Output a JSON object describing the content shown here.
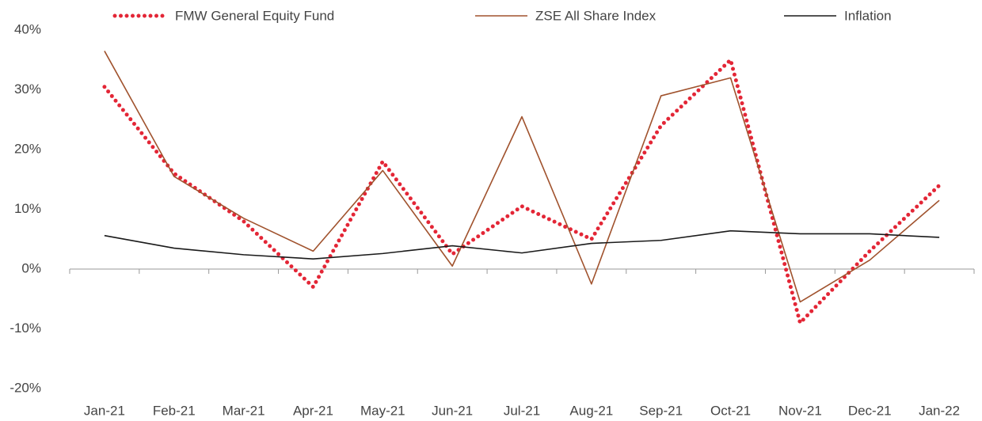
{
  "chart_data": {
    "type": "line",
    "categories": [
      "Jan-21",
      "Feb-21",
      "Mar-21",
      "Apr-21",
      "May-21",
      "Jun-21",
      "Jul-21",
      "Aug-21",
      "Sep-21",
      "Oct-21",
      "Nov-21",
      "Dec-21",
      "Jan-22"
    ],
    "series": [
      {
        "name": "FMW General Equity Fund",
        "color": "#e32636",
        "style": "dotted",
        "values": [
          30.5,
          16,
          8,
          -3,
          18,
          2.5,
          10.5,
          5,
          24,
          35,
          -9,
          3,
          14
        ]
      },
      {
        "name": "ZSE All Share Index",
        "color": "#a0522d",
        "style": "solid",
        "values": [
          36.5,
          15.5,
          8.5,
          3,
          16.5,
          0.5,
          25.5,
          -2.5,
          29,
          32,
          -5.5,
          1.5,
          11.5
        ]
      },
      {
        "name": "Inflation",
        "color": "#1a1a1a",
        "style": "solid",
        "values": [
          5.6,
          3.5,
          2.4,
          1.7,
          2.6,
          3.9,
          2.7,
          4.3,
          4.8,
          6.4,
          5.9,
          5.9,
          5.3
        ]
      }
    ],
    "ylim": [
      -20,
      40
    ],
    "yticks": [
      {
        "value": -20,
        "label": "-20%"
      },
      {
        "value": -10,
        "label": "-10%"
      },
      {
        "value": 0,
        "label": "0%"
      },
      {
        "value": 10,
        "label": "10%"
      },
      {
        "value": 20,
        "label": "20%"
      },
      {
        "value": 30,
        "label": "30%"
      },
      {
        "value": 40,
        "label": "40%"
      }
    ],
    "grid": false,
    "legend": "top"
  }
}
